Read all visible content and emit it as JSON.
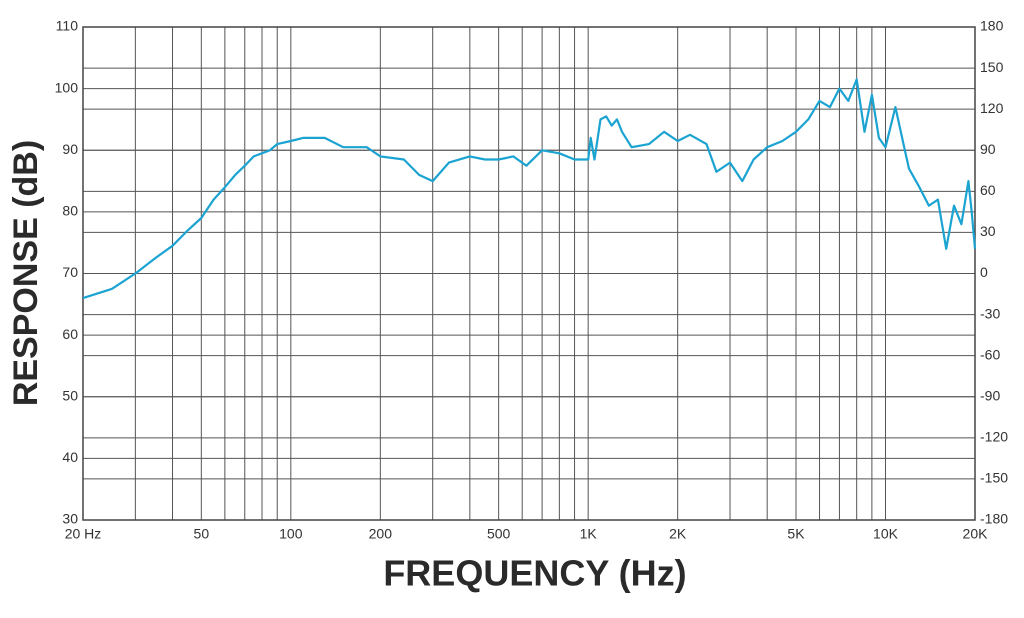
{
  "chart_data": {
    "type": "line",
    "ylabel": "RESPONSE (dB)",
    "xlabel": "FREQUENCY (Hz)",
    "xscale": "log",
    "grid": true,
    "color": "#1ba3d1",
    "xlim": [
      20,
      20000
    ],
    "ylim": [
      30,
      110
    ],
    "y2lim": [
      -180,
      180
    ],
    "xticks": [
      {
        "value": 20,
        "label": "20  Hz"
      },
      50,
      100,
      200,
      500,
      {
        "value": 1000,
        "label": "1K"
      },
      {
        "value": 2000,
        "label": "2K"
      },
      {
        "value": 5000,
        "label": "5K"
      },
      {
        "value": 10000,
        "label": "10K"
      },
      {
        "value": 20000,
        "label": "20K"
      }
    ],
    "xminorticks": [
      30,
      40,
      60,
      70,
      80,
      90,
      300,
      400,
      600,
      700,
      800,
      900,
      3000,
      4000,
      6000,
      7000,
      8000,
      9000
    ],
    "yticks": [
      30,
      40,
      50,
      60,
      70,
      80,
      90,
      100,
      110
    ],
    "y2ticks": [
      -180,
      -150,
      -120,
      -90,
      -60,
      -30,
      0,
      30,
      60,
      90,
      120,
      150,
      180
    ],
    "x": [
      20,
      25,
      30,
      35,
      40,
      45,
      50,
      55,
      60,
      65,
      70,
      75,
      85,
      90,
      100,
      110,
      130,
      150,
      180,
      200,
      240,
      270,
      300,
      340,
      400,
      450,
      500,
      560,
      620,
      700,
      800,
      900,
      1000,
      1020,
      1050,
      1100,
      1150,
      1200,
      1250,
      1300,
      1400,
      1600,
      1800,
      2000,
      2200,
      2500,
      2700,
      3000,
      3300,
      3600,
      4000,
      4500,
      5000,
      5500,
      6000,
      6500,
      7000,
      7500,
      8000,
      8500,
      9000,
      9500,
      10000,
      10800,
      11500,
      12000,
      13000,
      14000,
      15000,
      16000,
      17000,
      18000,
      19000,
      19500,
      20000
    ],
    "values": [
      66,
      67.5,
      70,
      72.5,
      74.5,
      77,
      79,
      82,
      84,
      86,
      87.5,
      89,
      90,
      91,
      91.5,
      92,
      92,
      90.5,
      90.5,
      89,
      88.5,
      86,
      85,
      88,
      89,
      88.5,
      88.5,
      89,
      87.5,
      90,
      89.5,
      88.5,
      88.5,
      92,
      88.5,
      95,
      95.5,
      94,
      95,
      93,
      90.5,
      91,
      93,
      91.5,
      92.5,
      91,
      86.5,
      88,
      85,
      88.5,
      90.5,
      91.5,
      93,
      95,
      98,
      97,
      100,
      98,
      101.5,
      93,
      99,
      92,
      90.5,
      97,
      91,
      87,
      84,
      81,
      82,
      74,
      81,
      78,
      85,
      80,
      74
    ]
  }
}
